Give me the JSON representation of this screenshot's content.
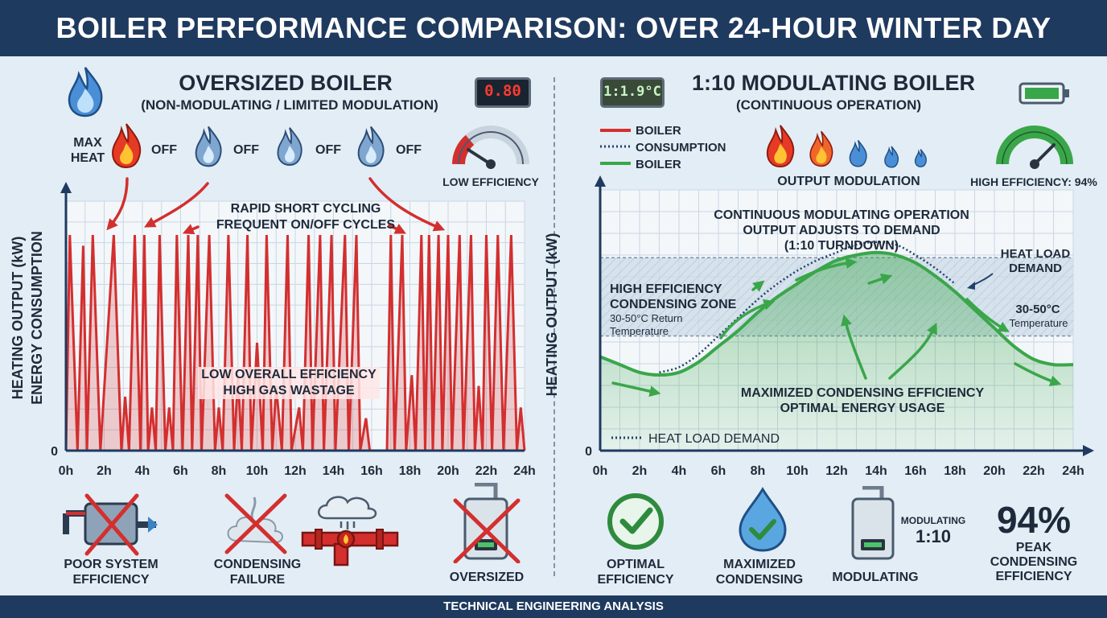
{
  "header": {
    "title": "BOILER PERFORMANCE COMPARISON: OVER 24-HOUR WINTER DAY"
  },
  "footer": {
    "text": "TECHNICAL ENGINEERING ANALYSIS"
  },
  "left": {
    "title": "OVERSIZED BOILER",
    "subtitle": "(NON-MODULATING / LIMITED MODULATION)",
    "display": "0.80",
    "max_heat": "MAX\nHEAT",
    "off_labels": [
      "OFF",
      "OFF",
      "OFF",
      "OFF"
    ],
    "gauge_label": "LOW EFFICIENCY",
    "annotation_cycling": "RAPID SHORT CYCLING\nFREQUENT ON/OFF CYCLES",
    "annotation_efficiency": "LOW OVERALL EFFICIENCY\nHIGH GAS WASTAGE",
    "footer_items": [
      {
        "label": "POOR SYSTEM\nEFFICIENCY",
        "icon": "heat-exchanger-crossed-icon"
      },
      {
        "label": "CONDENSING\nFAILURE",
        "icon": "steam-plume-crossed-icon"
      },
      {
        "label": "",
        "icon": "leaking-pipe-icon"
      },
      {
        "label": "OVERSIZED",
        "icon": "boiler-unit-crossed-icon"
      }
    ]
  },
  "right": {
    "title": "1:10 MODULATING BOILER",
    "subtitle": "(CONTINUOUS OPERATION)",
    "display": "1:1.9°C",
    "legend": [
      {
        "label": "BOILER",
        "color": "#d32f2f",
        "style": "solid"
      },
      {
        "label": "CONSUMPTION",
        "color": "#22406a",
        "style": "dotted"
      },
      {
        "label": "BOILER",
        "color": "#3aa64a",
        "style": "solid"
      }
    ],
    "modulation_label": "OUTPUT MODULATION",
    "gauge_label": "HIGH EFFICIENCY: 94%",
    "annotation_continuous": "CONTINUOUS MODULATING OPERATION\nOUTPUT ADJUSTS TO DEMAND\n(1:10 TURNDOWN)",
    "annotation_zone_title": "HIGH EFFICIENCY\nCONDENSING ZONE",
    "annotation_zone_sub": "30-50°C Return\nTemperature",
    "annotation_heat_load": "HEAT LOAD\nDEMAND",
    "annotation_temp_title": "30-50°C",
    "annotation_temp_sub": "Temperature",
    "annotation_max": "MAXIMIZED CONDENSING EFFICIENCY\nOPTIMAL ENERGY USAGE",
    "legend_bottom": "HEAT LOAD DEMAND",
    "footer_items": [
      {
        "label": "OPTIMAL\nEFFICIENCY",
        "icon": "check-circle-icon"
      },
      {
        "label": "MAXIMIZED\nCONDENSING",
        "icon": "water-drop-check-icon"
      },
      {
        "label": "MODULATING",
        "icon": "boiler-unit-icon"
      }
    ],
    "modulating_note_label": "MODULATING",
    "modulating_note_value": "1:10",
    "peak_value": "94%",
    "peak_label": "PEAK\nCONDENSING\nEFFICIENCY"
  },
  "colors": {
    "red": "#d32f2f",
    "green": "#3aa64a",
    "navy": "#1f3a5f",
    "flame_blue": "#3b83c6"
  },
  "chart_data": [
    {
      "type": "line",
      "title": "OVERSIZED BOILER",
      "ylabel": "HEATING OUTPUT (kW)\nENERGY CONSUMPTION",
      "xlabel": "",
      "x_ticks": [
        "0h",
        "2h",
        "4h",
        "6h",
        "8h",
        "10h",
        "12h",
        "14h",
        "16h",
        "18h",
        "20h",
        "22h",
        "24h"
      ],
      "y_ticks": [
        "0"
      ],
      "xlim": [
        0,
        24
      ],
      "ylim": [
        0,
        1
      ],
      "grid": true,
      "series": [
        {
          "color": "#d32f2f",
          "style": "spikes",
          "points": [
            [
              0,
              0
            ],
            [
              0.2,
              1
            ],
            [
              0.6,
              0
            ],
            [
              0.9,
              0.95
            ],
            [
              1.1,
              0
            ],
            [
              1.4,
              1
            ],
            [
              1.8,
              0
            ],
            [
              2.5,
              1
            ],
            [
              2.9,
              0
            ],
            [
              3.1,
              0.25
            ],
            [
              3.3,
              0
            ],
            [
              3.6,
              1
            ],
            [
              3.9,
              0
            ],
            [
              4.1,
              1
            ],
            [
              4.3,
              0
            ],
            [
              4.5,
              0.2
            ],
            [
              4.7,
              0
            ],
            [
              4.9,
              1
            ],
            [
              5.2,
              0
            ],
            [
              5.4,
              0.2
            ],
            [
              5.6,
              0
            ],
            [
              5.8,
              1
            ],
            [
              6.1,
              0
            ],
            [
              6.4,
              1
            ],
            [
              6.6,
              0
            ],
            [
              6.9,
              1
            ],
            [
              7.1,
              0
            ],
            [
              7.5,
              1
            ],
            [
              7.8,
              0
            ],
            [
              8.0,
              0.2
            ],
            [
              8.2,
              0
            ],
            [
              8.5,
              1
            ],
            [
              8.8,
              0
            ],
            [
              9.0,
              0.35
            ],
            [
              9.2,
              0
            ],
            [
              9.5,
              1
            ],
            [
              9.7,
              0
            ],
            [
              10.0,
              0.5
            ],
            [
              10.3,
              0
            ],
            [
              10.5,
              1
            ],
            [
              10.8,
              0
            ],
            [
              11.0,
              0.3
            ],
            [
              11.3,
              0
            ],
            [
              11.6,
              1
            ],
            [
              11.8,
              0
            ],
            [
              12.2,
              0.2
            ],
            [
              12.4,
              0
            ],
            [
              12.7,
              1
            ],
            [
              12.9,
              0
            ],
            [
              13.3,
              1
            ],
            [
              13.5,
              0
            ],
            [
              13.9,
              1
            ],
            [
              14.1,
              0
            ],
            [
              14.6,
              1
            ],
            [
              14.8,
              0
            ],
            [
              15.2,
              1
            ],
            [
              15.4,
              0
            ],
            [
              15.7,
              0.15
            ],
            [
              15.9,
              0
            ],
            [
              16.8,
              0
            ],
            [
              17.0,
              1
            ],
            [
              17.2,
              0
            ],
            [
              17.6,
              1
            ],
            [
              17.8,
              0
            ],
            [
              18.1,
              0.35
            ],
            [
              18.3,
              0
            ],
            [
              18.6,
              1
            ],
            [
              18.8,
              0
            ],
            [
              19.0,
              1
            ],
            [
              19.2,
              0
            ],
            [
              19.5,
              1
            ],
            [
              19.7,
              0
            ],
            [
              20.0,
              1
            ],
            [
              20.2,
              0
            ],
            [
              20.6,
              1
            ],
            [
              20.8,
              0
            ],
            [
              21.2,
              1
            ],
            [
              21.4,
              0
            ],
            [
              21.6,
              0.3
            ],
            [
              21.8,
              0
            ],
            [
              22.0,
              1
            ],
            [
              22.3,
              0
            ],
            [
              22.6,
              1
            ],
            [
              22.9,
              0
            ],
            [
              23.3,
              1
            ],
            [
              23.6,
              0
            ],
            [
              23.8,
              0.2
            ],
            [
              24,
              0
            ]
          ]
        }
      ]
    },
    {
      "type": "line",
      "title": "1:10 MODULATING BOILER",
      "ylabel": "HEATING OUTPUT (kW)",
      "xlabel": "",
      "x_ticks": [
        "0h",
        "2h",
        "4h",
        "6h",
        "8h",
        "10h",
        "12h",
        "14h",
        "16h",
        "18h",
        "20h",
        "22h",
        "24h"
      ],
      "y_ticks": [
        "0"
      ],
      "xlim": [
        0,
        24
      ],
      "ylim": [
        0,
        1
      ],
      "grid": true,
      "condensing_zone": [
        0.44,
        0.74
      ],
      "series": [
        {
          "name": "BOILER",
          "color": "#3aa64a",
          "style": "solid",
          "x": [
            0,
            1,
            2,
            3,
            4,
            5,
            6,
            7,
            8,
            9,
            10,
            11,
            12,
            13,
            14,
            15,
            16,
            17,
            18,
            19,
            20,
            21,
            22,
            23,
            24
          ],
          "values": [
            0.36,
            0.33,
            0.3,
            0.29,
            0.3,
            0.34,
            0.4,
            0.46,
            0.53,
            0.59,
            0.64,
            0.69,
            0.73,
            0.75,
            0.76,
            0.75,
            0.72,
            0.67,
            0.61,
            0.54,
            0.47,
            0.4,
            0.35,
            0.33,
            0.33
          ]
        },
        {
          "name": "CONSUMPTION",
          "color": "#22406a",
          "style": "dotted",
          "x": [
            3,
            4,
            5,
            6,
            7,
            8,
            9,
            10,
            11,
            12,
            13,
            14,
            15,
            16,
            17,
            18
          ],
          "values": [
            0.3,
            0.32,
            0.37,
            0.44,
            0.51,
            0.58,
            0.64,
            0.69,
            0.73,
            0.76,
            0.79,
            0.8,
            0.79,
            0.75,
            0.7,
            0.64
          ]
        }
      ]
    }
  ]
}
